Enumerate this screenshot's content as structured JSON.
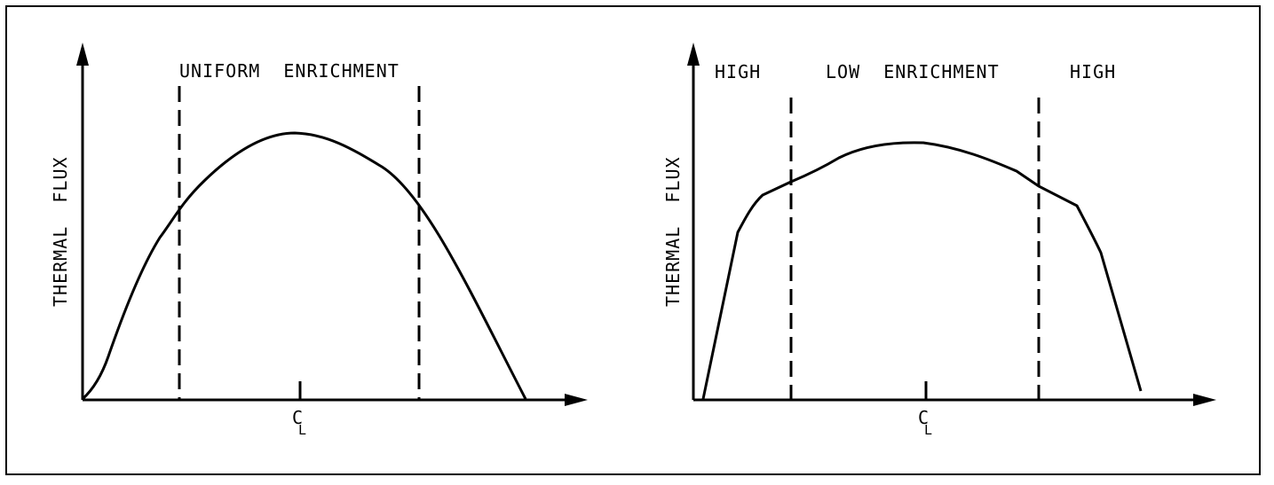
{
  "left_panel": {
    "region_label": "UNIFORM  ENRICHMENT",
    "y_axis_label": "THERMAL  FLUX",
    "centerline_symbol": "C",
    "centerline_sub": "L"
  },
  "right_panel": {
    "region_label_left": "HIGH",
    "region_label_center": "LOW  ENRICHMENT",
    "region_label_right": "HIGH",
    "y_axis_label": "THERMAL  FLUX",
    "centerline_symbol": "C",
    "centerline_sub": "L"
  },
  "colors": {
    "line": "#000000",
    "background": "#ffffff"
  }
}
